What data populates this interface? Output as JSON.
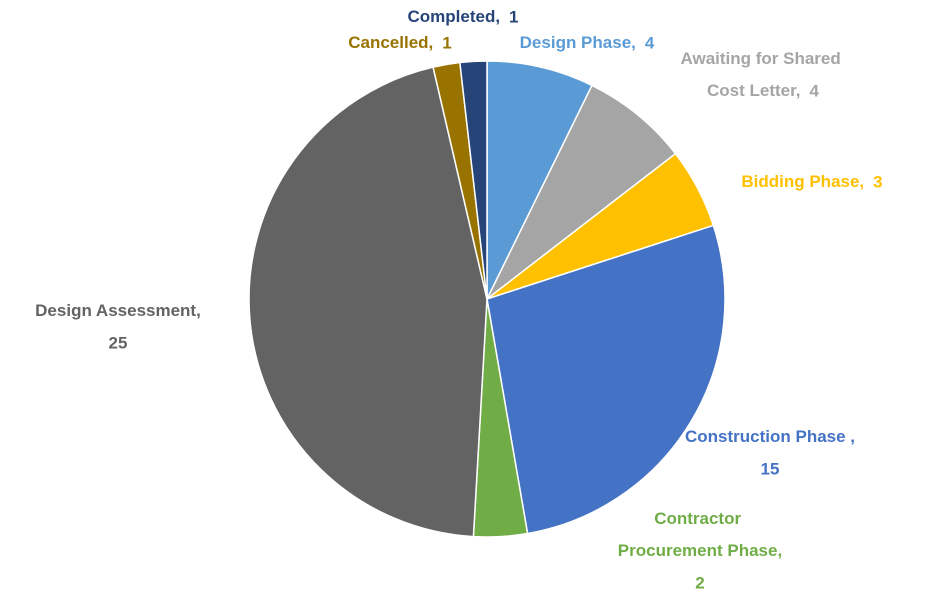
{
  "chart_data": {
    "type": "pie",
    "categories": [
      "Design Phase,",
      "Awaiting for Shared Cost Letter,",
      "Bidding Phase,",
      "Construction Phase ,",
      "Contractor Procurement Phase,",
      "Design Assessment,",
      "Cancelled,",
      "Completed,"
    ],
    "values": [
      4,
      4,
      3,
      15,
      2,
      25,
      1,
      1
    ],
    "colors": [
      "#5b9bd5",
      "#a5a5a5",
      "#ffc000",
      "#4472c4",
      "#70ad47",
      "#636363",
      "#997300",
      "#264478"
    ]
  }
}
